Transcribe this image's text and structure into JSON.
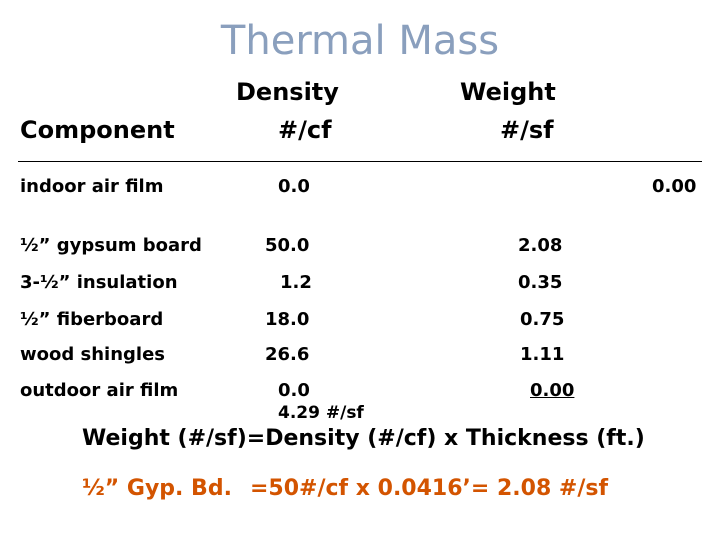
{
  "title": "Thermal Mass",
  "columns": {
    "component": "Component",
    "density_line1": "Density",
    "density_line2": "#/cf",
    "weight_line1": "Weight",
    "weight_line2": "#/sf"
  },
  "rows": [
    {
      "component": "indoor air film",
      "density": "0.0",
      "weight": "0.00"
    },
    {
      "component": "½” gypsum board",
      "density": "50.0",
      "weight": "2.08"
    },
    {
      "component": "3-½” insulation",
      "density": "1.2",
      "weight": "0.35"
    },
    {
      "component": "½” fiberboard",
      "density": "18.0",
      "weight": "0.75"
    },
    {
      "component": "wood shingles",
      "density": "26.6",
      "weight": "1.11"
    },
    {
      "component": "outdoor air film",
      "density": "0.0",
      "weight": "0.00"
    }
  ],
  "total": "4.29 #/sf",
  "formula": "Weight (#/sf)=Density (#/cf) x Thickness (ft.)",
  "example_label": "½” Gyp. Bd.",
  "example_calc": "=50#/cf x 0.0416’= 2.08 #/sf",
  "colors": {
    "title": "#8a9fbd",
    "example": "#d35400"
  }
}
